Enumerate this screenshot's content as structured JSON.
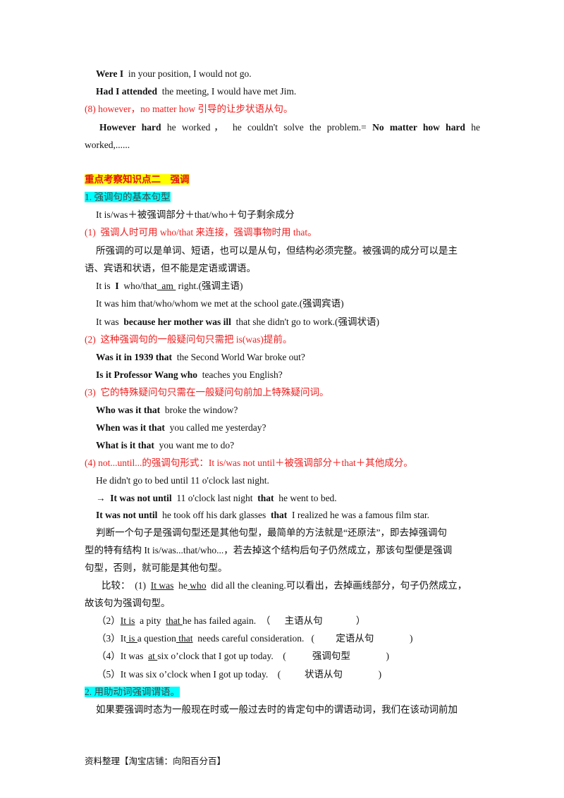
{
  "lines": [
    [
      {
        "t": "Were I",
        "b": true
      },
      {
        "t": "  in your position, I would not go."
      }
    ],
    [
      {
        "t": "Had I attended",
        "b": true
      },
      {
        "t": "  the meeting, I would have met Jim."
      }
    ],
    [
      {
        "t": "(8) however，no matter how 引导的让步状语从句。"
      }
    ],
    [
      {
        "t": " However  hard",
        "b": true
      },
      {
        "t": "   he  worked，  he  couldn't  solve  the  problem.=  "
      },
      {
        "t": "No  matter  how  hard",
        "b": true
      },
      {
        "t": "   he"
      }
    ],
    [
      {
        "t": "worked,......"
      }
    ],
    [
      {
        "t": "重点考察知识点二    强调"
      }
    ],
    [
      {
        "t": "1. 强调句的基本句型"
      }
    ],
    [
      {
        "t": "It is/was＋被强调部分＋that/who＋句子剩余成分"
      }
    ],
    [
      {
        "t": "(1)  强调人时可用 who/that 来连接，强调事物时用 that。"
      }
    ],
    [
      {
        "t": "所强调的可以是单词、短语，也可以是从句，但结构必须完整。被强调的成分可以是主"
      }
    ],
    [
      {
        "t": "语、宾语和状语，但不能是定语或谓语。"
      }
    ],
    [
      {
        "t": "It is  "
      },
      {
        "t": "I",
        "b": true
      },
      {
        "t": "  who/that"
      },
      {
        "t": "  am ",
        "u": true
      },
      {
        "t": " right.(强调主语)"
      }
    ],
    [
      {
        "t": "It was him that/who/whom we met at the school gate.(强调宾语)"
      }
    ],
    [
      {
        "t": "It was  "
      },
      {
        "t": "because her mother was ill",
        "b": true
      },
      {
        "t": "  that she didn't go to work.(强调状语)"
      }
    ],
    [
      {
        "t": "(2)  这种强调句的一般疑问句只需把 is(was)提前。"
      }
    ],
    [
      {
        "t": "Was it in 1939 that",
        "b": true
      },
      {
        "t": "  the Second World War broke out?"
      }
    ],
    [
      {
        "t": "Is it Professor Wang who",
        "b": true
      },
      {
        "t": "  teaches you English?"
      }
    ],
    [
      {
        "t": "(3)  它的特殊疑问句只需在一般疑问句前加上特殊疑问词。"
      }
    ],
    [
      {
        "t": "Who was it that",
        "b": true
      },
      {
        "t": "  broke the window?"
      }
    ],
    [
      {
        "t": "When was it that",
        "b": true
      },
      {
        "t": "  you called me yesterday?"
      }
    ],
    [
      {
        "t": "What is it that",
        "b": true
      },
      {
        "t": "  you want me to do?"
      }
    ],
    [
      {
        "t": "(4) not...until...的强调句形式：It is/was not until＋被强调部分＋that＋其他成分。"
      }
    ],
    [
      {
        "t": "He didn't go to bed until 11 o'clock last night."
      }
    ],
    [
      {
        "t": "→  "
      },
      {
        "t": "It was not until",
        "b": true
      },
      {
        "t": "  11 o'clock last night  "
      },
      {
        "t": "that",
        "b": true
      },
      {
        "t": "  he went to bed."
      }
    ],
    [
      {
        "t": "It was not until",
        "b": true
      },
      {
        "t": "  he took off his dark glasses  "
      },
      {
        "t": "that",
        "b": true
      },
      {
        "t": "  I realized he was a famous film star."
      }
    ],
    [
      {
        "t": "判断一个句子是强调句型还是其他句型，最简单的方法就是“还原法”，即去掉强调句"
      }
    ],
    [
      {
        "t": "型的特有结构 It is/was...that/who...，若去掉这个结构后句子仍然成立，那该句型便是强调"
      }
    ],
    [
      {
        "t": "句型，否则，就可能是其他句型。"
      }
    ],
    [
      {
        "t": "比较：  (1)  "
      },
      {
        "t": "It was",
        "u": true
      },
      {
        "t": "  he"
      },
      {
        "t": " who",
        "u": true
      },
      {
        "t": "  did all the cleaning.可以看出，去掉画线部分，句子仍然成立，"
      }
    ],
    [
      {
        "t": "故该句为强调句型。"
      }
    ],
    [
      {
        "t": "（2）"
      },
      {
        "t": "It is",
        "u": true
      },
      {
        "t": "  a pity  "
      },
      {
        "t": "that ",
        "u": true
      },
      {
        "t": "he has failed again.  （      主语从句              ）"
      }
    ],
    [
      {
        "t": "（3）It"
      },
      {
        "t": " is ",
        "u": true
      },
      {
        "t": "a question"
      },
      {
        "t": " that",
        "u": true
      },
      {
        "t": "  needs careful consideration.   (         定语从句               )"
      }
    ],
    [
      {
        "t": "（4）It was  "
      },
      {
        "t": "at ",
        "u": true
      },
      {
        "t": "six o’clock that I got up today.    (           强调句型               )"
      }
    ],
    [
      {
        "t": "（5）It was six o’clock when I got up today.    (          状语从句               )"
      }
    ],
    [
      {
        "t": "2. 用助动词强调谓语。"
      }
    ],
    [
      {
        "t": "如果要强调时态为一般现在时或一般过去时的肯定句中的谓语动词，我们在该动词前加"
      }
    ]
  ],
  "footer": "资料整理【淘宝店铺：向阳百分百】"
}
